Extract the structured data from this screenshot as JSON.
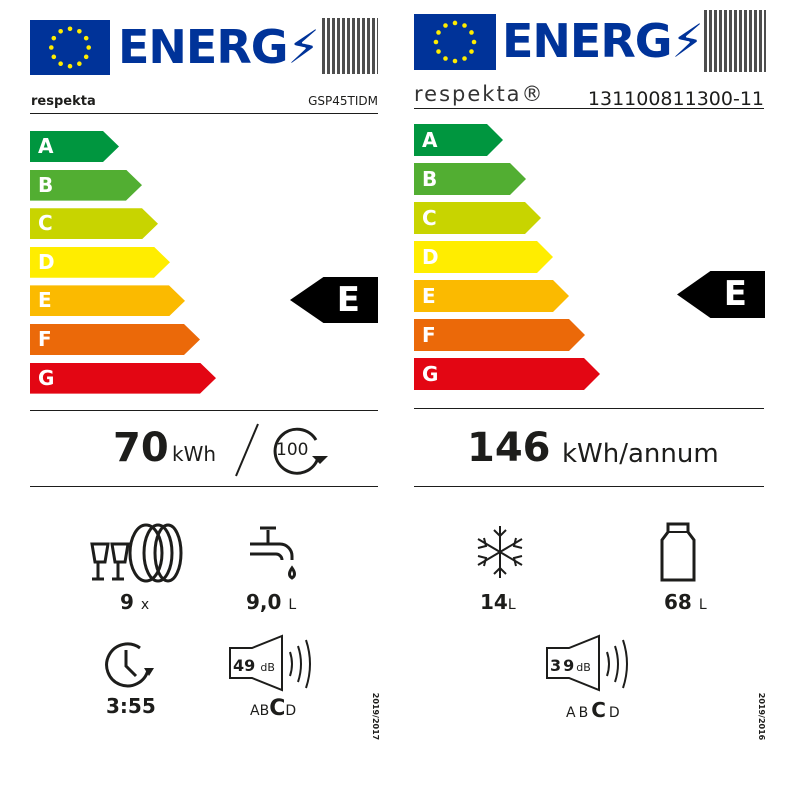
{
  "colors": {
    "eu_blue": "#003399",
    "star": "#ffed00",
    "A": "#00963f",
    "B": "#52ae32",
    "C": "#c8d400",
    "D": "#ffed00",
    "E": "#fbba00",
    "F": "#eb6909",
    "G": "#e30613"
  },
  "classes": [
    "A",
    "B",
    "C",
    "D",
    "E",
    "F",
    "G"
  ],
  "left": {
    "header": "ENERG",
    "brand": "respekta",
    "model": "GSP45TIDM",
    "rating": "E",
    "energy_value": "70",
    "energy_unit": "kWh",
    "cycles": "100",
    "place_settings": "9",
    "place_settings_unit": "x",
    "water": "9,0",
    "water_unit": "L",
    "duration": "3:55",
    "noise": "49",
    "noise_unit": "dB",
    "noise_classes": [
      "A",
      "B",
      "C",
      "D"
    ],
    "noise_class": "C",
    "regulation": "2019/2017"
  },
  "right": {
    "header": "ENERG",
    "brand": "respekta®",
    "model": "131100811300-11",
    "rating": "E",
    "energy_value": "146",
    "energy_unit": "kWh/annum",
    "freezer": "14",
    "freezer_unit": "L",
    "fridge": "68",
    "fridge_unit": "L",
    "noise": "39",
    "noise_unit": "dB",
    "noise_classes": [
      "A",
      "B",
      "C",
      "D"
    ],
    "noise_class": "C",
    "regulation": "2019/2016"
  }
}
